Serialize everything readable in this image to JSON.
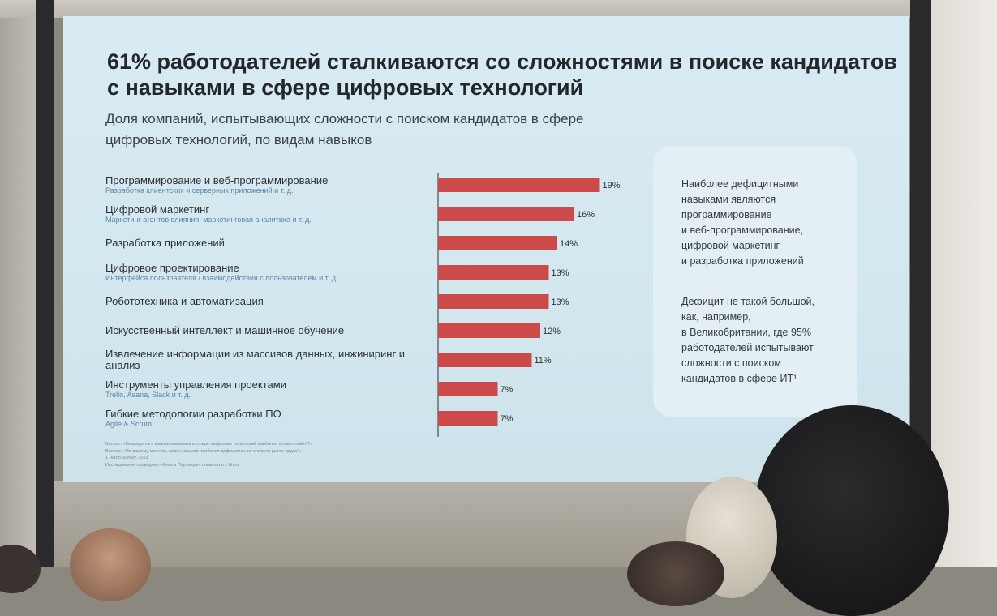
{
  "slide": {
    "title": "61% работодателей сталкиваются со сложностями в поиске кандидатов с навыками в сфере цифровых технологий",
    "subtitle": "Доля компаний, испытывающих сложности с поиском кандидатов в сфере цифровых технологий, по видам навыков"
  },
  "chart_data": {
    "type": "bar",
    "orientation": "horizontal",
    "categories": [
      "Программирование и веб-программирование",
      "Цифровой маркетинг",
      "Разработка приложений",
      "Цифровое проектирование",
      "Робототехника и автоматизация",
      "Искусственный интеллект и машинное обучение",
      "Извлечение информации из массивов данных, инжиниринг и анализ",
      "Инструменты управления проектами",
      "Гибкие методологии разработки ПО"
    ],
    "category_subtitles": [
      "Разработка клиентских и серверных приложений и т. д.",
      "Маркетинг агентов влияния, маркетинговая аналитика и т. д.",
      "",
      "Интерфейса пользователя / взаимодействия с пользователем и т. д.",
      "",
      "",
      "",
      "Trello, Asana, Slack и т. д.",
      "Agile & Scrum"
    ],
    "values": [
      19,
      16,
      14,
      13,
      13,
      12,
      11,
      7,
      7
    ],
    "value_labels": [
      "19%",
      "16%",
      "14%",
      "13%",
      "13%",
      "12%",
      "11%",
      "7%",
      "7%"
    ],
    "bar_color": "#cc4a4a",
    "value_suffix": "%",
    "xlim": [
      0,
      20
    ],
    "grid": false,
    "legend": "none"
  },
  "side_panel": {
    "note_1": "Наиболее дефицитными\nнавыками являются\nпрограммирование\nи веб-программирование,\nцифровой маркетинг\nи разработка приложений",
    "note_2": "Дефицит не такой большой,\nкак, например,\nв Великобритании, где 95%\nработодателей испытывают\nсложности с поиском\nкандидатов в сфере ИТ¹"
  },
  "footnotes": {
    "question_1": "Вопрос: «Кандидатов с какими навыками в сфере цифровых технологий наиболее сложно найти?»",
    "question_2": "Вопрос: «По вашему мнению, каких навыков наиболее дефицитны на текущем рынке труда?»",
    "source": "1     HAYS Survey, 2023",
    "research": "Исследование проведено «Яков и Партнёры» совместно с hh.ru"
  }
}
